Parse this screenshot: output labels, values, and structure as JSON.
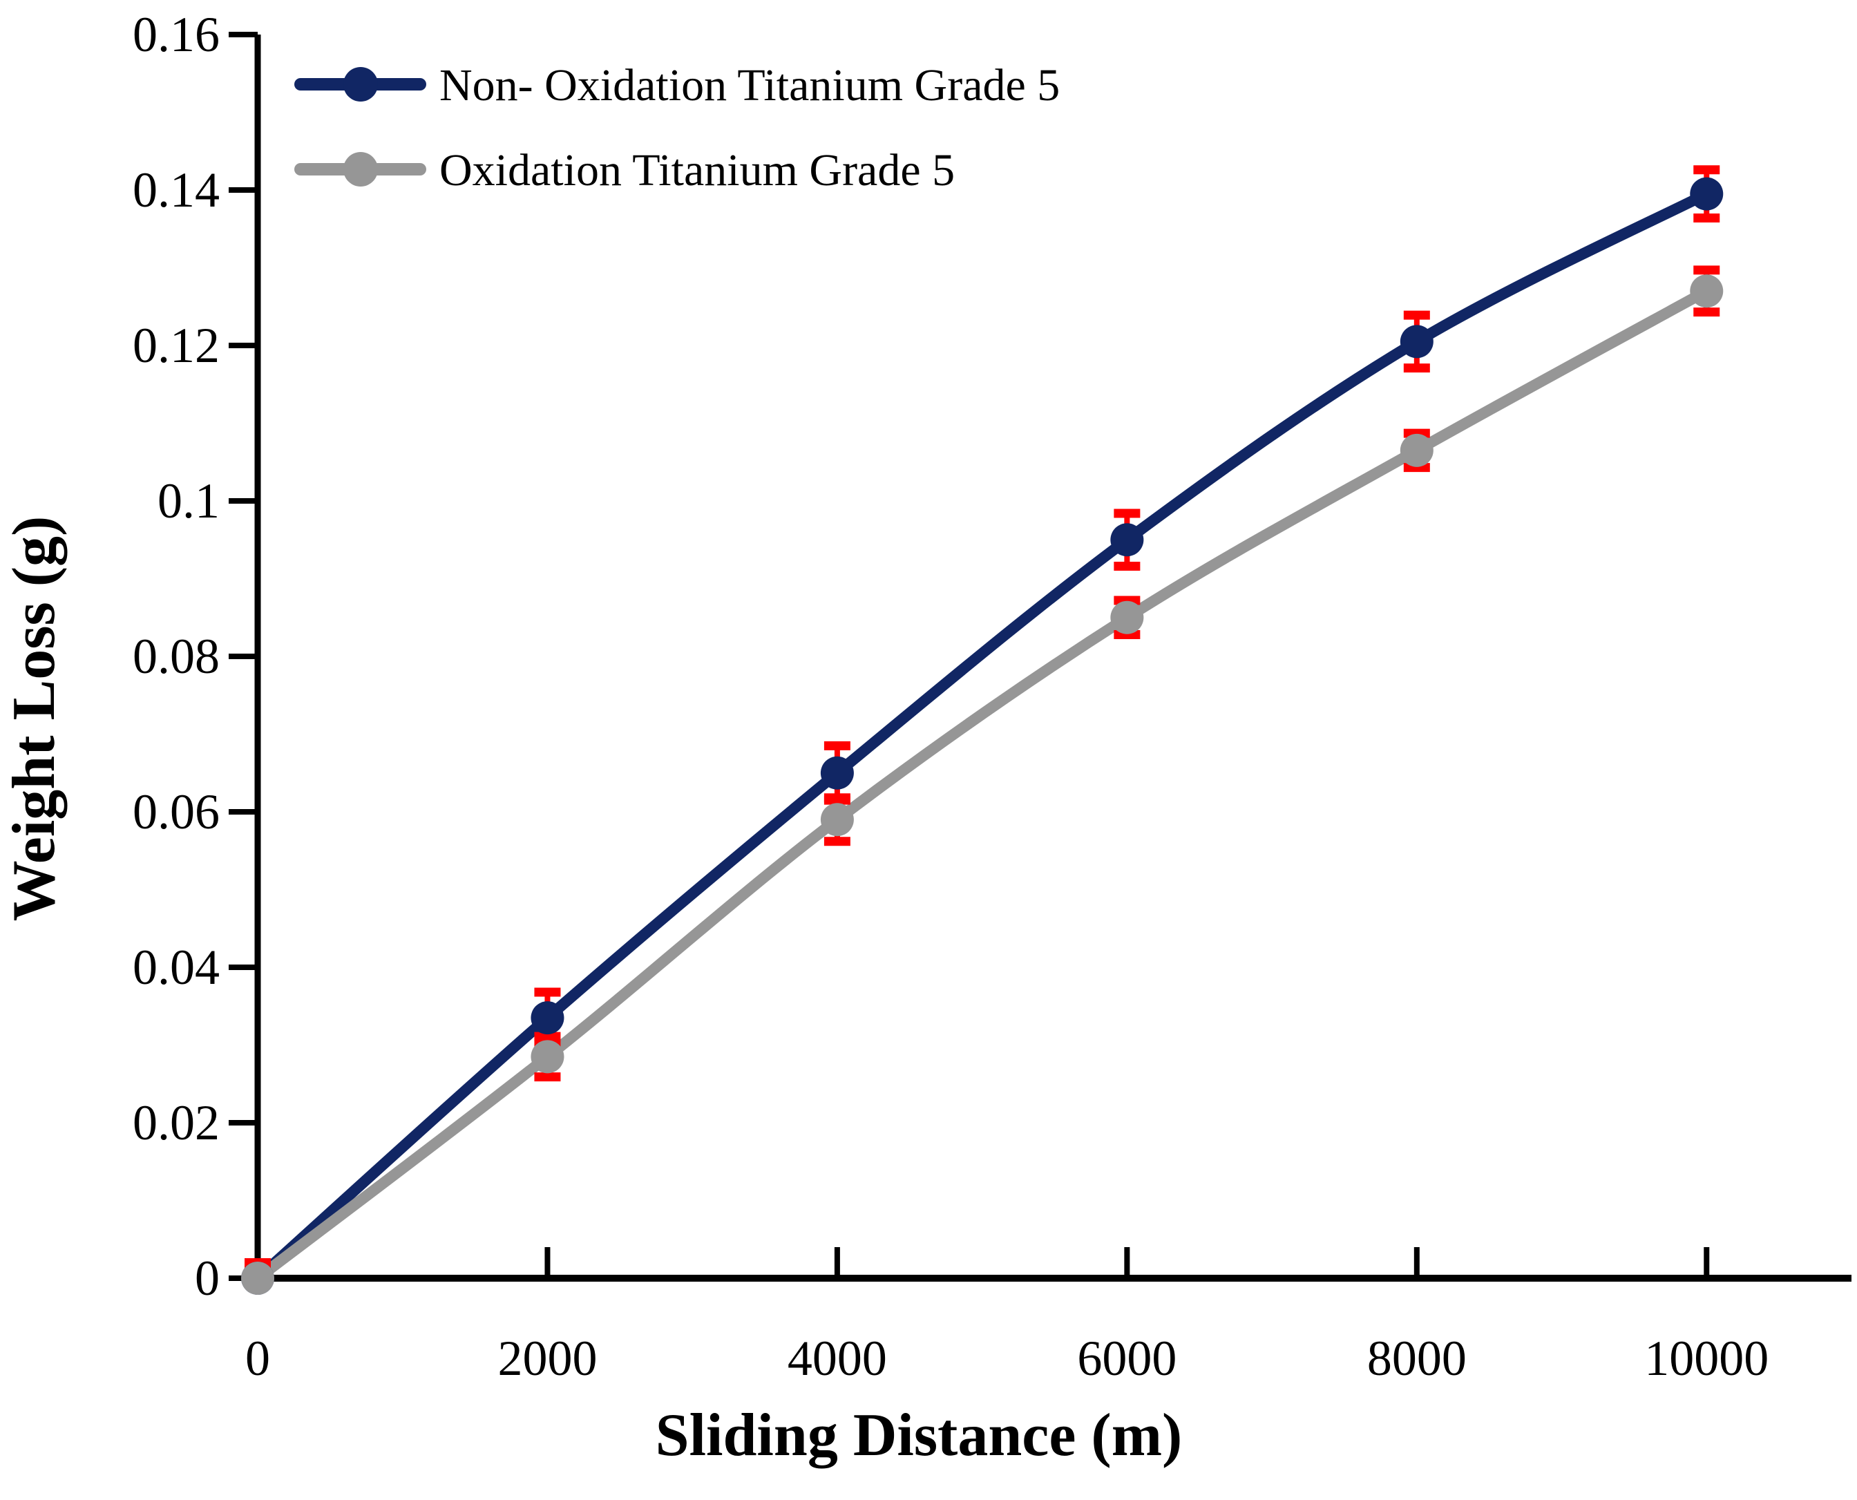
{
  "chart_data": {
    "type": "line",
    "title": "",
    "xlabel": "Sliding Distance (m)",
    "ylabel": "Weight Loss (g)",
    "x": [
      0,
      2000,
      4000,
      6000,
      8000,
      10000
    ],
    "x_tick_labels": [
      "0",
      "2000",
      "4000",
      "6000",
      "8000",
      "10000"
    ],
    "y_ticks": [
      0,
      0.02,
      0.04,
      0.06,
      0.08,
      0.1,
      0.12,
      0.14,
      0.16
    ],
    "y_tick_labels": [
      "0",
      "0.02",
      "0.04",
      "0.06",
      "0.08",
      "0.1",
      "0.12",
      "0.14",
      "0.16"
    ],
    "xlim": [
      0,
      11000
    ],
    "ylim": [
      0,
      0.16
    ],
    "grid": false,
    "legend_position": "top-left-inside",
    "axis_color": "#000000",
    "error_bar_color": "#FF0000",
    "series": [
      {
        "name": "Non- Oxidation Titanium Grade 5",
        "color": "#112664",
        "values": [
          0,
          0.0335,
          0.065,
          0.095,
          0.1205,
          0.1395
        ],
        "errors": [
          0.002,
          0.0033,
          0.0035,
          0.0034,
          0.0034,
          0.0031
        ]
      },
      {
        "name": "Oxidation Titanium Grade 5",
        "color": "#969696",
        "values": [
          0,
          0.0285,
          0.059,
          0.085,
          0.1065,
          0.127
        ],
        "errors": [
          0.0015,
          0.0026,
          0.0028,
          0.0022,
          0.0022,
          0.0027
        ]
      }
    ]
  }
}
